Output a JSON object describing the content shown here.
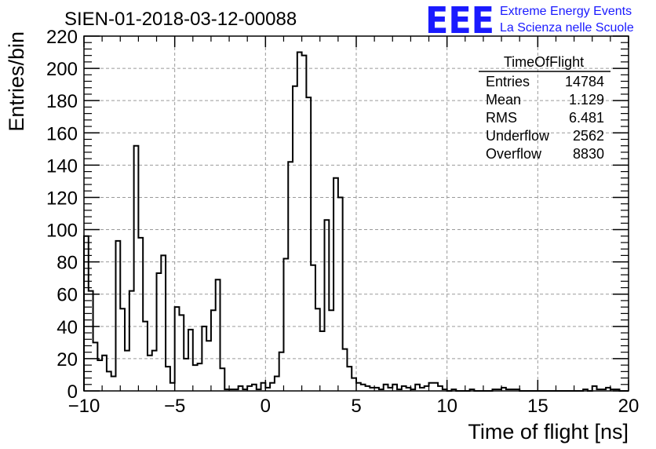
{
  "title": "SIEN-01-2018-03-12-00088",
  "logo": {
    "letters": "EEE",
    "line1": "Extreme Energy Events",
    "line2": "La Scienza nelle Scuole",
    "color": "#1a1aff"
  },
  "stats_box": {
    "name": "TimeOfFlight",
    "rows": [
      {
        "label": "Entries",
        "value": "14784"
      },
      {
        "label": "Mean",
        "value": "1.129"
      },
      {
        "label": "RMS",
        "value": "6.481"
      },
      {
        "label": "Underflow",
        "value": "2562"
      },
      {
        "label": "Overflow",
        "value": "8830"
      }
    ]
  },
  "chart_data": {
    "type": "bar",
    "subtype": "step-histogram",
    "title": "SIEN-01-2018-03-12-00088",
    "xlabel": "Time of flight [ns]",
    "ylabel": "Entries/bin",
    "xlim": [
      -10,
      20
    ],
    "ylim": [
      0,
      220
    ],
    "x_ticks": [
      "−10",
      "−5",
      "0",
      "5",
      "10",
      "15",
      "20"
    ],
    "x_tick_values": [
      -10,
      -5,
      0,
      5,
      10,
      15,
      20
    ],
    "y_ticks": [
      "0",
      "20",
      "40",
      "60",
      "80",
      "100",
      "120",
      "140",
      "160",
      "180",
      "200",
      "220"
    ],
    "y_tick_values": [
      0,
      20,
      40,
      60,
      80,
      100,
      120,
      140,
      160,
      180,
      200,
      220
    ],
    "grid": true,
    "bin_width": 0.25,
    "x_start": -10,
    "bin_values": [
      96,
      62,
      30,
      19,
      22,
      12,
      9,
      93,
      51,
      25,
      62,
      152,
      95,
      43,
      22,
      25,
      73,
      84,
      15,
      5,
      52,
      47,
      20,
      38,
      16,
      17,
      40,
      31,
      50,
      69,
      14,
      1,
      1,
      1,
      3,
      1,
      3,
      4,
      1,
      5,
      2,
      5,
      9,
      24,
      82,
      142,
      189,
      210,
      208,
      182,
      78,
      51,
      37,
      106,
      50,
      132,
      120,
      26,
      15,
      8,
      5,
      4,
      3,
      2,
      2,
      1,
      4,
      2,
      4,
      1,
      3,
      2,
      1,
      4,
      2,
      3,
      5,
      5,
      3,
      1,
      0,
      1,
      0,
      0,
      0,
      1,
      0,
      0,
      0,
      0,
      1,
      1,
      2,
      1,
      1,
      1,
      0,
      0,
      0,
      0,
      0,
      0,
      0,
      0,
      0,
      0,
      0,
      0,
      0,
      0,
      1,
      0,
      3,
      1,
      1,
      2,
      1,
      1,
      0,
      0
    ]
  }
}
